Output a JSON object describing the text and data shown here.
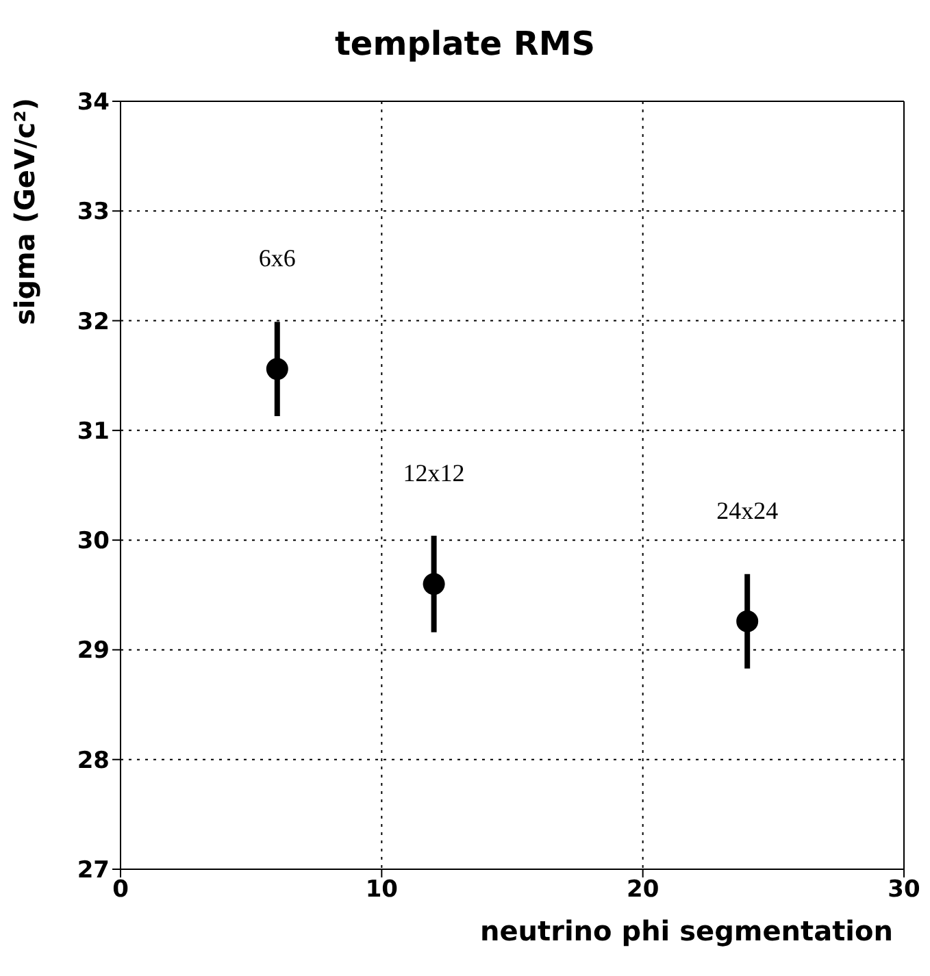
{
  "chart_data": {
    "type": "scatter",
    "title": "template RMS",
    "xlabel": "neutrino phi segmentation",
    "ylabel": "sigma (GeV/c²)",
    "x": [
      6,
      12,
      24
    ],
    "values": [
      31.56,
      29.6,
      29.26
    ],
    "errors": [
      0.43,
      0.44,
      0.43
    ],
    "color": "#000000",
    "marker": "circle",
    "xlim": [
      0,
      30
    ],
    "xticks": [
      0,
      10,
      20,
      30
    ],
    "ylim": [
      27,
      34
    ],
    "yticks": [
      27,
      28,
      29,
      30,
      31,
      32,
      33,
      34
    ],
    "grid": true,
    "annotations": [
      "6x6",
      "12x12",
      "24x24"
    ]
  }
}
